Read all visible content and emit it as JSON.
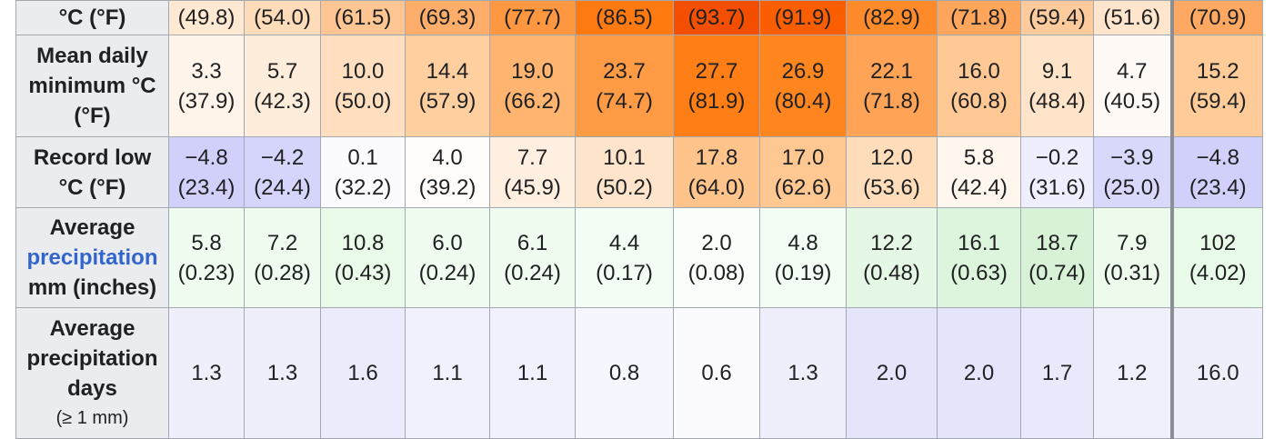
{
  "table": {
    "rows": [
      {
        "header": [
          "°C (°F)"
        ],
        "cells": [
          [
            "(49.8)"
          ],
          [
            "(54.0)"
          ],
          [
            "(61.5)"
          ],
          [
            "(69.3)"
          ],
          [
            "(77.7)"
          ],
          [
            "(86.5)"
          ],
          [
            "(93.7)"
          ],
          [
            "(91.9)"
          ],
          [
            "(82.9)"
          ],
          [
            "(71.8)"
          ],
          [
            "(59.4)"
          ],
          [
            "(51.6)"
          ],
          [
            "(70.9)"
          ]
        ],
        "colors": [
          "#ffe9d3",
          "#ffdcb9",
          "#ffc592",
          "#ffad6b",
          "#ff9640",
          "#ff7a10",
          "#f44f00",
          "#fb5e00",
          "#ff8a2a",
          "#ffa55c",
          "#ffcb9c",
          "#ffe5cc",
          "#ffa862"
        ]
      },
      {
        "header": [
          "Mean daily",
          "minimum °C",
          "(°F)"
        ],
        "cells": [
          [
            "3.3",
            "(37.9)"
          ],
          [
            "5.7",
            "(42.3)"
          ],
          [
            "10.0",
            "(50.0)"
          ],
          [
            "14.4",
            "(57.9)"
          ],
          [
            "19.0",
            "(66.2)"
          ],
          [
            "23.7",
            "(74.7)"
          ],
          [
            "27.7",
            "(81.9)"
          ],
          [
            "26.9",
            "(80.4)"
          ],
          [
            "22.1",
            "(71.8)"
          ],
          [
            "16.0",
            "(60.8)"
          ],
          [
            "9.1",
            "(48.4)"
          ],
          [
            "4.7",
            "(40.5)"
          ],
          [
            "15.2",
            "(59.4)"
          ]
        ],
        "colors": [
          "#fff4ea",
          "#ffeddb",
          "#ffdfc0",
          "#ffcfa0",
          "#ffb470",
          "#ff9a45",
          "#ff7e15",
          "#ff851f",
          "#ffa356",
          "#ffc894",
          "#ffe4c9",
          "#fffaf5",
          "#ffcb98"
        ]
      },
      {
        "header": [
          "Record low",
          "°C (°F)"
        ],
        "cells": [
          [
            "−4.8",
            "(23.4)"
          ],
          [
            "−4.2",
            "(24.4)"
          ],
          [
            "0.1",
            "(32.2)"
          ],
          [
            "4.0",
            "(39.2)"
          ],
          [
            "7.7",
            "(45.9)"
          ],
          [
            "10.1",
            "(50.2)"
          ],
          [
            "17.8",
            "(64.0)"
          ],
          [
            "17.0",
            "(62.6)"
          ],
          [
            "12.0",
            "(53.6)"
          ],
          [
            "5.8",
            "(42.4)"
          ],
          [
            "−0.2",
            "(31.6)"
          ],
          [
            "−3.9",
            "(25.0)"
          ],
          [
            "−4.8",
            "(23.4)"
          ]
        ],
        "colors": [
          "#d0d0fa",
          "#d5d5fb",
          "#fafaff",
          "#fffcf9",
          "#ffefe0",
          "#ffe4cc",
          "#ffc48c",
          "#ffc892",
          "#ffddbb",
          "#fff6ee",
          "#eeeeff",
          "#d8d8fb",
          "#d0d0fa"
        ]
      },
      {
        "header": [
          "Average",
          "precipitation",
          "mm (inches)"
        ],
        "cells": [
          [
            "5.8",
            "(0.23)"
          ],
          [
            "7.2",
            "(0.28)"
          ],
          [
            "10.8",
            "(0.43)"
          ],
          [
            "6.0",
            "(0.24)"
          ],
          [
            "6.1",
            "(0.24)"
          ],
          [
            "4.4",
            "(0.17)"
          ],
          [
            "2.0",
            "(0.08)"
          ],
          [
            "4.8",
            "(0.19)"
          ],
          [
            "12.2",
            "(0.48)"
          ],
          [
            "16.1",
            "(0.63)"
          ],
          [
            "18.7",
            "(0.74)"
          ],
          [
            "7.9",
            "(0.31)"
          ],
          [
            "102",
            "(4.02)"
          ]
        ],
        "colors": [
          "#f1fcf1",
          "#eefbee",
          "#e9fae9",
          "#f0fcf0",
          "#f0fcf0",
          "#f4fdf4",
          "#fafefa",
          "#f3fdf3",
          "#e5f8e5",
          "#ddf5dd",
          "#d7f2d7",
          "#edfbed",
          "#e8fae8"
        ]
      },
      {
        "header": [
          "Average",
          "precipitation",
          "days",
          "(≥ 1 mm)"
        ],
        "cells": [
          [
            "1.3"
          ],
          [
            "1.3"
          ],
          [
            "1.6"
          ],
          [
            "1.1"
          ],
          [
            "1.1"
          ],
          [
            "0.8"
          ],
          [
            "0.6"
          ],
          [
            "1.3"
          ],
          [
            "2.0"
          ],
          [
            "2.0"
          ],
          [
            "1.7"
          ],
          [
            "1.2"
          ],
          [
            "16.0"
          ]
        ],
        "colors": [
          "#efeffc",
          "#efeffc",
          "#ebebfb",
          "#f1f1fd",
          "#f1f1fd",
          "#f6f6fe",
          "#fafaff",
          "#efeffc",
          "#e4e4fa",
          "#e4e4fa",
          "#e9e9fb",
          "#f0f0fc",
          "#efeffc"
        ]
      }
    ]
  }
}
